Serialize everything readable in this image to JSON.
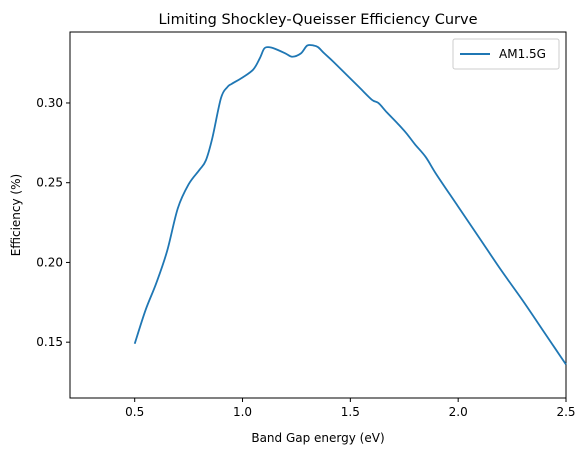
{
  "chart_data": {
    "type": "line",
    "title": "Limiting Shockley-Queisser Efficiency Curve",
    "xlabel": "Band Gap energy (eV)",
    "ylabel": "Efficiency (%)",
    "xlim": [
      0.2,
      2.5
    ],
    "ylim": [
      0.115,
      0.3445
    ],
    "xticks": [
      0.5,
      1.0,
      1.5,
      2.0,
      2.5
    ],
    "xtick_labels": [
      "0.5",
      "1.0",
      "1.5",
      "2.0",
      "2.5"
    ],
    "yticks": [
      0.15,
      0.2,
      0.25,
      0.3
    ],
    "ytick_labels": [
      "0.15",
      "0.20",
      "0.25",
      "0.30"
    ],
    "grid": false,
    "legend_position": "top-right",
    "series": [
      {
        "name": "AM1.5G",
        "color": "#1f77b4",
        "x": [
          0.5,
          0.55,
          0.6,
          0.65,
          0.7,
          0.75,
          0.8,
          0.83,
          0.86,
          0.9,
          0.93,
          0.95,
          1.0,
          1.05,
          1.08,
          1.1,
          1.12,
          1.15,
          1.2,
          1.23,
          1.27,
          1.3,
          1.33,
          1.35,
          1.38,
          1.42,
          1.48,
          1.54,
          1.6,
          1.63,
          1.67,
          1.72,
          1.76,
          1.8,
          1.85,
          1.9,
          2.0,
          2.1,
          2.2,
          2.3,
          2.4,
          2.45,
          2.5
        ],
        "y": [
          0.149,
          0.17,
          0.187,
          0.207,
          0.234,
          0.249,
          0.258,
          0.264,
          0.278,
          0.303,
          0.31,
          0.312,
          0.316,
          0.321,
          0.328,
          0.334,
          0.335,
          0.334,
          0.331,
          0.329,
          0.331,
          0.336,
          0.336,
          0.335,
          0.331,
          0.326,
          0.318,
          0.31,
          0.302,
          0.3,
          0.294,
          0.287,
          0.281,
          0.274,
          0.266,
          0.255,
          0.235,
          0.215,
          0.195,
          0.176,
          0.156,
          0.146,
          0.136
        ]
      }
    ]
  }
}
